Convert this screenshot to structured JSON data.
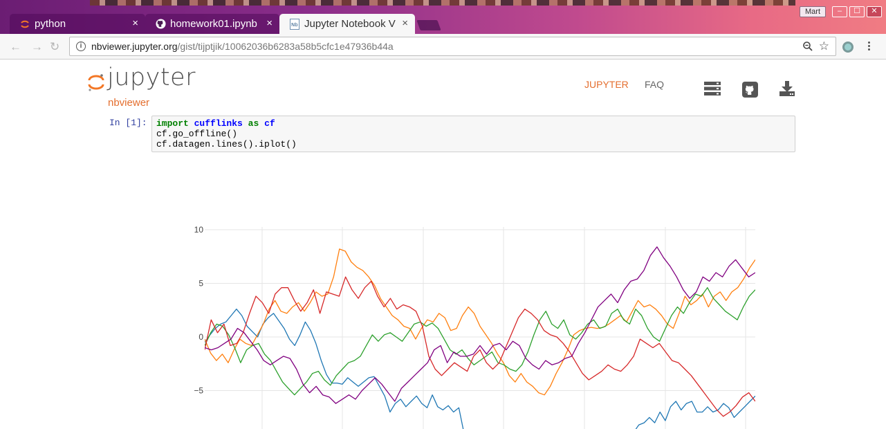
{
  "browser": {
    "tabs": [
      {
        "title": "python",
        "close": "×",
        "active": false,
        "icon": "jupyter-icon"
      },
      {
        "title": "homework01.ipynb",
        "close": "×",
        "active": false,
        "icon": "github-icon"
      },
      {
        "title": "Jupyter Notebook V",
        "close": "×",
        "active": true,
        "icon": "nbviewer-icon"
      }
    ],
    "user": "Mart",
    "window_controls": {
      "minimize": "–",
      "maximize": "☐",
      "close": "✕"
    },
    "nav": {
      "back": "←",
      "forward": "→",
      "reload": "↻"
    },
    "url_host": "nbviewer.jupyter.org",
    "url_path": "/gist/tijptjik/10062036b6283a58b5cfc1e47936b44a",
    "bookmark_icon": "☆",
    "zoom_icon": "zoom-out-icon"
  },
  "header": {
    "logo_word": "jupyter",
    "logo_sub": "nbviewer",
    "nav_links": [
      "JUPYTER",
      "FAQ"
    ],
    "icons": [
      "server-icon",
      "github-icon",
      "download-icon"
    ]
  },
  "cell": {
    "prompt": "In [1]:",
    "line1": {
      "kw1": "import",
      "mod": "cufflinks",
      "kw2": "as",
      "alias": "cf"
    },
    "line2": "cf.go_offline()",
    "line3": "cf.datagen.lines().iplot()"
  },
  "colors": {
    "accent": "#e46e2e",
    "series": [
      "#1f77b4",
      "#ff7f0e",
      "#2ca02c",
      "#d62728",
      "#800080"
    ]
  },
  "chart_data": {
    "type": "line",
    "y_tick_labels": [
      "10",
      "5",
      "0",
      "−5"
    ],
    "y_ticks": [
      10,
      5,
      0,
      -5
    ],
    "ylim": [
      -8.5,
      10
    ],
    "xlim": [
      0,
      100
    ],
    "grid": true,
    "series": [
      {
        "color": "#1f77b4",
        "values": [
          -0.5,
          0.2,
          0.8,
          1.2,
          1.4,
          2.0,
          2.6,
          2.0,
          1.0,
          0.5,
          0.0,
          1.2,
          1.8,
          2.2,
          1.5,
          0.8,
          -0.2,
          -0.8,
          0.2,
          1.4,
          0.6,
          -0.6,
          -2.2,
          -3.5,
          -4.3,
          -4.3,
          -4.4,
          -3.8,
          -4.2,
          -4.6,
          -4.2,
          -3.8,
          -3.7,
          -4.6,
          -5.5,
          -7.0,
          -6.2,
          -5.8,
          -6.5,
          -6.0,
          -5.5,
          -6.2,
          -6.6,
          -5.4,
          -6.5,
          -6.8,
          -6.4,
          -7.0,
          -6.6,
          -9,
          -9,
          -9,
          -9,
          -9,
          -9,
          -9,
          -9,
          -9,
          -9,
          -9,
          -9,
          -9,
          -9,
          -9,
          -9,
          -9,
          -9,
          -9,
          -9,
          -9,
          -9,
          -9,
          -9,
          -9,
          -9,
          -9,
          -9,
          -9,
          -9,
          -9,
          -9,
          -8.9,
          -8.2,
          -8.0,
          -7.5,
          -8.0,
          -7.0,
          -7.8,
          -6.5,
          -6.0,
          -6.8,
          -6.2,
          -6.0,
          -7.0,
          -7.0,
          -6.5,
          -7.0,
          -6.8,
          -6.2,
          -6.6,
          -7.5,
          -7.0,
          -6.5,
          -6.0,
          -5.5
        ]
      },
      {
        "color": "#ff7f0e",
        "values": [
          -0.2,
          -1.5,
          -2.2,
          -1.6,
          -2.4,
          -1.2,
          -0.2,
          -0.6,
          -0.8,
          0.2,
          1.2,
          2.6,
          3.4,
          2.4,
          2.2,
          2.8,
          3.2,
          2.4,
          3.2,
          4.2,
          3.8,
          4.0,
          5.6,
          8.2,
          8.0,
          7.0,
          6.5,
          6.2,
          5.6,
          4.8,
          3.6,
          2.8,
          2.0,
          1.6,
          1.0,
          0.8,
          -0.2,
          0.8,
          1.6,
          1.4,
          2.2,
          1.8,
          0.6,
          0.8,
          2.0,
          2.8,
          2.2,
          1.0,
          0.2,
          -0.6,
          -1.6,
          -2.4,
          -3.6,
          -4.2,
          -3.4,
          -4.2,
          -4.6,
          -5.2,
          -5.4,
          -4.6,
          -3.4,
          -2.4,
          -1.2,
          0.2,
          0.6,
          0.8,
          0.9,
          0.8,
          0.9,
          1.2,
          1.6,
          2.0,
          1.4,
          2.4,
          3.4,
          2.8,
          3.0,
          2.6,
          2.0,
          1.2,
          0.8,
          2.2,
          3.8,
          3.0,
          3.4,
          4.0,
          2.8,
          3.8,
          4.2,
          3.4,
          4.2,
          4.6,
          5.4,
          6.4,
          7.2
        ]
      },
      {
        "color": "#2ca02c",
        "values": [
          -0.8,
          0.4,
          1.2,
          1.0,
          0.2,
          -1.0,
          -2.4,
          -1.2,
          -0.8,
          -0.6,
          -1.6,
          -2.2,
          -3.2,
          -4.2,
          -4.8,
          -5.4,
          -4.8,
          -4.2,
          -3.4,
          -3.2,
          -4.0,
          -4.5,
          -3.6,
          -3.0,
          -2.4,
          -2.2,
          -1.8,
          -0.8,
          0.2,
          -0.4,
          0.2,
          0.4,
          0.0,
          -0.4,
          0.4,
          1.2,
          1.4,
          1.0,
          1.3,
          0.8,
          -0.2,
          -1.2,
          -1.6,
          -1.2,
          -2.0,
          -2.6,
          -2.2,
          -1.8,
          -1.4,
          -2.4,
          -2.6,
          -3.0,
          -3.2,
          -2.6,
          -1.4,
          0.2,
          1.6,
          2.4,
          1.2,
          0.8,
          1.6,
          0.2,
          -0.2,
          0.4,
          1.2,
          1.6,
          0.8,
          1.0,
          2.2,
          2.6,
          1.6,
          1.2,
          2.6,
          2.0,
          0.8,
          0.0,
          -0.4,
          0.8,
          2.0,
          2.8,
          2.2,
          3.2,
          4.0,
          3.8,
          4.6,
          3.6,
          3.0,
          2.4,
          2.0,
          1.6,
          2.8,
          3.8,
          4.4
        ]
      },
      {
        "color": "#d62728",
        "values": [
          -1.2,
          1.6,
          0.4,
          1.2,
          -0.8,
          -0.6,
          0.4,
          2.2,
          3.8,
          3.2,
          2.2,
          4.0,
          4.6,
          4.6,
          3.4,
          2.4,
          3.2,
          4.4,
          2.2,
          4.2,
          4.0,
          3.8,
          5.6,
          4.4,
          3.6,
          4.6,
          5.2,
          3.8,
          2.8,
          3.6,
          2.6,
          3.0,
          2.8,
          2.4,
          1.0,
          -1.8,
          -3.0,
          -3.6,
          -3.0,
          -2.4,
          -2.8,
          -3.2,
          -1.8,
          -1.2,
          -2.4,
          -3.0,
          -2.4,
          -1.0,
          0.4,
          1.8,
          2.6,
          2.2,
          1.6,
          0.6,
          0.2,
          0.0,
          -0.6,
          -1.4,
          -2.4,
          -3.4,
          -4.0,
          -3.6,
          -3.2,
          -2.6,
          -3.0,
          -3.2,
          -2.6,
          -1.8,
          -0.2,
          -0.6,
          -1.0,
          -0.6,
          -1.4,
          -2.2,
          -2.4,
          -3.0,
          -3.6,
          -4.4,
          -5.2,
          -6.0,
          -6.8,
          -7.4,
          -7.0,
          -6.4,
          -5.6,
          -5.2,
          -6.0
        ]
      },
      {
        "color": "#800080",
        "values": [
          -1.0,
          -1.2,
          -1.0,
          -0.6,
          -0.2,
          0.8,
          0.4,
          -0.4,
          -1.2,
          -2.2,
          -2.6,
          -2.2,
          -1.8,
          -2.0,
          -3.0,
          -4.4,
          -5.2,
          -4.6,
          -5.4,
          -5.6,
          -6.2,
          -5.8,
          -5.4,
          -5.8,
          -5.0,
          -4.4,
          -3.8,
          -4.4,
          -5.2,
          -6.0,
          -4.8,
          -4.2,
          -3.6,
          -3.0,
          -2.4,
          -1.2,
          -0.8,
          -2.4,
          -1.4,
          -1.8,
          -1.8,
          -1.6,
          -0.8,
          -1.6,
          -0.8,
          -0.6,
          -1.2,
          -0.4,
          -0.8,
          -2.0,
          -2.6,
          -3.0,
          -2.2,
          -2.6,
          -2.4,
          -2.0,
          -1.8,
          -0.6,
          0.4,
          1.6,
          2.8,
          3.4,
          4.0,
          3.2,
          4.4,
          5.2,
          5.4,
          6.2,
          7.6,
          8.4,
          7.4,
          6.6,
          5.6,
          4.4,
          3.6,
          4.2,
          5.6,
          5.2,
          6.0,
          5.6,
          6.6,
          7.2,
          6.4,
          5.6,
          6.0
        ]
      }
    ]
  }
}
